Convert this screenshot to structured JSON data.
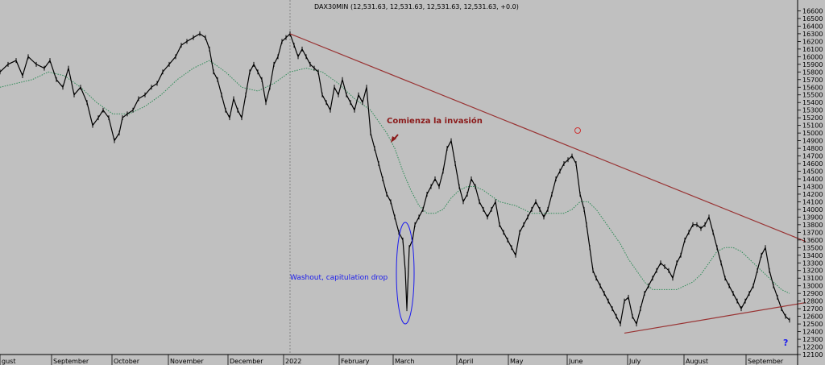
{
  "chart_data": {
    "type": "line",
    "header": "DAX30MIN (12,531.63, 12,531.63, 12,531.63, 12,531.63, +0.0)",
    "x_labels": [
      "gust",
      "September",
      "October",
      "November",
      "December",
      "2022",
      "February",
      "March",
      "April",
      "May",
      "June",
      "July",
      "August",
      "September"
    ],
    "x_label_pos": [
      0,
      64,
      139,
      209,
      283,
      352,
      421,
      488,
      567,
      631,
      704,
      779,
      849,
      926
    ],
    "y_ticks": [
      "16600",
      "16500",
      "16400",
      "16300",
      "16200",
      "16100",
      "16000",
      "15900",
      "15800",
      "15700",
      "15600",
      "15500",
      "15400",
      "15300",
      "15200",
      "15100",
      "15000",
      "14900",
      "14800",
      "14700",
      "14600",
      "14500",
      "14400",
      "14300",
      "14200",
      "14100",
      "14000",
      "13900",
      "13800",
      "13700",
      "13600",
      "13500",
      "13400",
      "13300",
      "13200",
      "13100",
      "13000",
      "12900",
      "12800",
      "12700",
      "12600",
      "12500",
      "12400",
      "12300",
      "12200",
      "12100"
    ],
    "ylim": [
      12100,
      16700
    ],
    "xlim": [
      0,
      990
    ],
    "price_series": {
      "x": [
        0,
        10,
        20,
        28,
        35,
        45,
        55,
        62,
        70,
        78,
        85,
        92,
        100,
        108,
        115,
        122,
        128,
        135,
        142,
        148,
        152,
        158,
        165,
        172,
        180,
        188,
        195,
        202,
        210,
        218,
        225,
        232,
        240,
        248,
        255,
        260,
        265,
        270,
        275,
        280,
        285,
        290,
        295,
        300,
        305,
        310,
        315,
        320,
        325,
        330,
        335,
        340,
        345,
        350,
        355,
        360,
        365,
        370,
        375,
        380,
        385,
        390,
        395,
        400,
        405,
        410,
        415,
        420,
        425,
        430,
        435,
        440,
        445,
        450,
        455,
        460,
        465,
        470,
        475,
        480,
        485,
        490,
        495,
        500,
        503,
        505,
        508,
        512,
        515,
        520,
        525,
        530,
        535,
        540,
        545,
        550,
        555,
        560,
        565,
        570,
        575,
        580,
        585,
        590,
        595,
        600,
        605,
        610,
        615,
        620,
        625,
        630,
        635,
        640,
        645,
        650,
        655,
        660,
        665,
        670,
        675,
        680,
        685,
        690,
        695,
        700,
        705,
        710,
        715,
        720,
        725,
        728,
        732,
        736,
        740,
        745,
        750,
        755,
        760,
        765,
        770,
        775,
        780,
        785,
        790,
        795,
        800,
        805,
        810,
        815,
        820,
        825,
        830,
        835,
        840,
        845,
        850,
        855,
        860,
        865,
        870,
        875,
        880,
        885,
        890,
        895,
        900,
        905,
        910,
        915,
        920,
        925,
        930,
        935,
        940,
        945,
        950,
        955,
        960,
        965,
        970,
        975,
        980
      ],
      "y": [
        15800,
        15900,
        15950,
        15750,
        16000,
        15900,
        15850,
        15950,
        15700,
        15600,
        15850,
        15500,
        15600,
        15400,
        15100,
        15200,
        15300,
        15200,
        14900,
        15000,
        15200,
        15250,
        15300,
        15450,
        15500,
        15600,
        15650,
        15800,
        15900,
        16000,
        16150,
        16200,
        16250,
        16300,
        16250,
        16100,
        15800,
        15700,
        15500,
        15300,
        15200,
        15450,
        15300,
        15200,
        15500,
        15800,
        15900,
        15800,
        15700,
        15400,
        15600,
        15900,
        16000,
        16200,
        16250,
        16300,
        16150,
        16000,
        16100,
        16000,
        15900,
        15850,
        15800,
        15500,
        15400,
        15300,
        15600,
        15500,
        15700,
        15500,
        15400,
        15300,
        15500,
        15400,
        15600,
        15000,
        14800,
        14600,
        14400,
        14200,
        14100,
        13900,
        13700,
        13600,
        13200,
        12700,
        13500,
        13600,
        13800,
        13900,
        14000,
        14200,
        14300,
        14400,
        14300,
        14500,
        14800,
        14900,
        14600,
        14300,
        14100,
        14200,
        14400,
        14300,
        14100,
        14000,
        13900,
        14000,
        14100,
        13800,
        13700,
        13600,
        13500,
        13400,
        13700,
        13800,
        13900,
        14000,
        14100,
        14000,
        13900,
        14000,
        14200,
        14400,
        14500,
        14600,
        14650,
        14700,
        14600,
        14200,
        14000,
        13800,
        13500,
        13200,
        13100,
        13000,
        12900,
        12800,
        12700,
        12600,
        12500,
        12800,
        12850,
        12600,
        12500,
        12700,
        12900,
        13000,
        13100,
        13200,
        13300,
        13250,
        13200,
        13100,
        13300,
        13400,
        13600,
        13700,
        13800,
        13800,
        13750,
        13800,
        13900,
        13700,
        13500,
        13300,
        13100,
        13000,
        12900,
        12800,
        12700,
        12800,
        12900,
        13000,
        13200,
        13400,
        13500,
        13200,
        13000,
        12850,
        12700,
        12600,
        12550
      ]
    },
    "ma_series": {
      "x": [
        0,
        20,
        40,
        60,
        80,
        100,
        120,
        140,
        160,
        180,
        200,
        220,
        240,
        260,
        280,
        300,
        320,
        340,
        360,
        380,
        400,
        420,
        440,
        460,
        480,
        490,
        500,
        510,
        520,
        530,
        540,
        550,
        560,
        570,
        580,
        590,
        600,
        620,
        640,
        660,
        680,
        700,
        710,
        720,
        730,
        740,
        750,
        760,
        770,
        780,
        790,
        800,
        810,
        820,
        830,
        840,
        850,
        860,
        870,
        880,
        890,
        900,
        910,
        920,
        930,
        940,
        950,
        960,
        970,
        980
      ],
      "y": [
        15600,
        15650,
        15700,
        15800,
        15750,
        15600,
        15400,
        15250,
        15250,
        15350,
        15500,
        15700,
        15850,
        15950,
        15800,
        15600,
        15550,
        15650,
        15800,
        15850,
        15800,
        15650,
        15450,
        15300,
        15000,
        14800,
        14500,
        14250,
        14050,
        13950,
        13950,
        14000,
        14150,
        14250,
        14300,
        14300,
        14250,
        14100,
        14050,
        13950,
        13950,
        13950,
        14000,
        14100,
        14100,
        14000,
        13850,
        13700,
        13550,
        13350,
        13200,
        13050,
        12950,
        12950,
        12950,
        12950,
        13000,
        13050,
        13150,
        13300,
        13450,
        13500,
        13500,
        13450,
        13350,
        13250,
        13150,
        13050,
        12950,
        12900
      ]
    },
    "trendlines": [
      {
        "x": [
          360,
          1000
        ],
        "y": [
          16300,
          13580
        ],
        "color": "#993333"
      },
      {
        "x": [
          775,
          1000
        ],
        "y": [
          12380,
          12780
        ],
        "color": "#993333"
      }
    ],
    "vline_x": 360,
    "annotations": {
      "invasion_text": "Comienza la invasión",
      "washout_text": "Washout, capitulation drop",
      "question_mark": "?"
    },
    "colors": {
      "background": "#c0c0c0",
      "price": "#000000",
      "ma": "#2e8b57",
      "trend": "#993333",
      "annot_red": "#8b1a1a",
      "annot_blue": "#1a1aee",
      "grid_vline": "#777777"
    }
  }
}
